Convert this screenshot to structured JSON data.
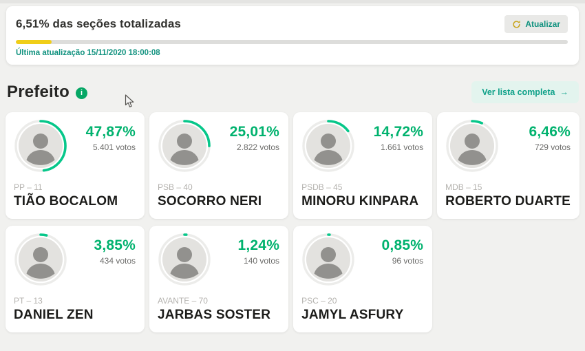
{
  "status_bar": {
    "title": "6,51% das seções totalizadas",
    "progress_percent": 6.51,
    "last_update": "Última atualização 15/11/2020 18:00:08",
    "refresh_label": "Atualizar"
  },
  "section": {
    "title": "Prefeito",
    "info_glyph": "i",
    "view_all_label": "Ver lista completa",
    "view_all_arrow": "→"
  },
  "colors": {
    "accent_green": "#00b26e",
    "ring_green": "#06c78a",
    "teal": "#11927f",
    "progress_yellow": "#f0ce18",
    "info_green": "#06a765",
    "page_background": "#f1f1ef"
  },
  "candidates": [
    {
      "name": "TIÃO BOCALOM",
      "party": "PP – 11",
      "percent": "47,87%",
      "percent_value": 47.87,
      "votes": "5.401 votos"
    },
    {
      "name": "SOCORRO NERI",
      "party": "PSB – 40",
      "percent": "25,01%",
      "percent_value": 25.01,
      "votes": "2.822 votos"
    },
    {
      "name": "MINORU KINPARA",
      "party": "PSDB – 45",
      "percent": "14,72%",
      "percent_value": 14.72,
      "votes": "1.661 votos"
    },
    {
      "name": "ROBERTO DUARTE",
      "party": "MDB – 15",
      "percent": "6,46%",
      "percent_value": 6.46,
      "votes": "729 votos"
    },
    {
      "name": "DANIEL ZEN",
      "party": "PT – 13",
      "percent": "3,85%",
      "percent_value": 3.85,
      "votes": "434 votos"
    },
    {
      "name": "JARBAS SOSTER",
      "party": "AVANTE – 70",
      "percent": "1,24%",
      "percent_value": 1.24,
      "votes": "140 votos"
    },
    {
      "name": "JAMYL ASFURY",
      "party": "PSC – 20",
      "percent": "0,85%",
      "percent_value": 0.85,
      "votes": "96 votos"
    }
  ]
}
